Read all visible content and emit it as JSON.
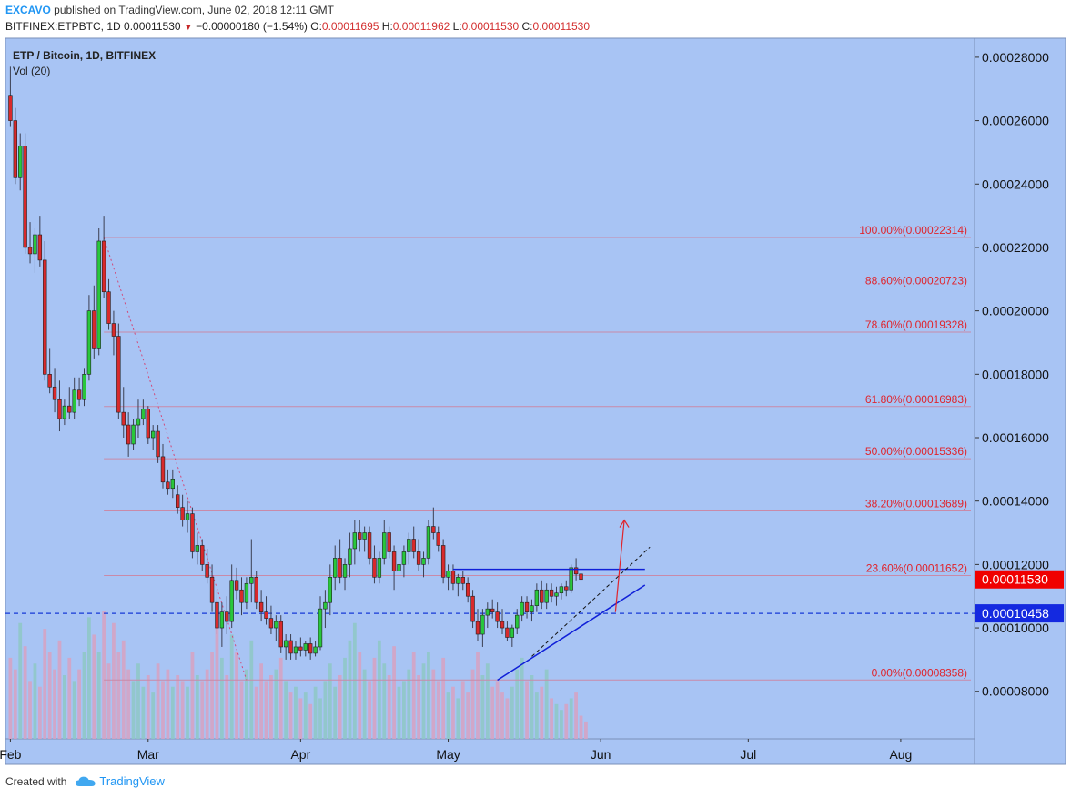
{
  "header": {
    "author": "EXCAVO",
    "published_text": "published on TradingView.com, June 02, 2018 12:11 GMT",
    "symbol": "BITFINEX:ETPBTC, 1D",
    "last": "0.00011530",
    "change": "−0.00000180 (−1.54%)",
    "o_label": "O:",
    "o": "0.00011695",
    "h_label": "H:",
    "h": "0.00011962",
    "l_label": "L:",
    "l": "0.00011530",
    "c_label": "C:",
    "c": "0.00011530"
  },
  "footer": {
    "created_with": "Created with",
    "brand": "TradingView"
  },
  "chart_data": {
    "type": "candlestick",
    "title": "ETP / Bitcoin, 1D, BITFINEX",
    "indicator": "Vol (20)",
    "ylim": [
      6.5e-05,
      0.000286
    ],
    "y_ticks": [
      "0.00008000",
      "0.00010000",
      "0.00012000",
      "0.00014000",
      "0.00016000",
      "0.00018000",
      "0.00020000",
      "0.00022000",
      "0.00024000",
      "0.00026000",
      "0.00028000"
    ],
    "x_ticks": [
      {
        "label": "Feb",
        "day": 0
      },
      {
        "label": "Mar",
        "day": 28
      },
      {
        "label": "Apr",
        "day": 59
      },
      {
        "label": "May",
        "day": 89
      },
      {
        "label": "Jun",
        "day": 120
      },
      {
        "label": "Jul",
        "day": 150
      },
      {
        "label": "Aug",
        "day": 181
      }
    ],
    "x_range_days": [
      -1,
      196
    ],
    "last_price_label": "0.00011530",
    "horizontal_line": {
      "value": 0.00010458,
      "label": "0.00010458"
    },
    "fib_levels": [
      {
        "label": "100.00%(0.00022314)",
        "value": 0.00022314
      },
      {
        "label": "88.60%(0.00020723)",
        "value": 0.00020723
      },
      {
        "label": "78.60%(0.00019328)",
        "value": 0.00019328
      },
      {
        "label": "61.80%(0.00016983)",
        "value": 0.00016983
      },
      {
        "label": "50.00%(0.00015336)",
        "value": 0.00015336
      },
      {
        "label": "38.20%(0.00013689)",
        "value": 0.00013689
      },
      {
        "label": "23.60%(0.00011652)",
        "value": 0.00011652
      },
      {
        "label": "0.00%(0.00008358)",
        "value": 8.358e-05
      }
    ],
    "fib_x_start_day": 19,
    "candles": [
      [
        0.000268,
        0.000277,
        0.000258,
        0.00026
      ],
      [
        0.00026,
        0.000264,
        0.00024,
        0.000242
      ],
      [
        0.000242,
        0.000256,
        0.000238,
        0.000252
      ],
      [
        0.000252,
        0.000256,
        0.000218,
        0.00022
      ],
      [
        0.00022,
        0.000228,
        0.000215,
        0.000218
      ],
      [
        0.000218,
        0.000226,
        0.000212,
        0.000224
      ],
      [
        0.000224,
        0.00023,
        0.000214,
        0.000216
      ],
      [
        0.000216,
        0.000222,
        0.000178,
        0.00018
      ],
      [
        0.00018,
        0.000188,
        0.000174,
        0.000176
      ],
      [
        0.000176,
        0.000182,
        0.000168,
        0.000172
      ],
      [
        0.000172,
        0.000178,
        0.000162,
        0.000166
      ],
      [
        0.000166,
        0.000172,
        0.000164,
        0.00017
      ],
      [
        0.00017,
        0.000176,
        0.000166,
        0.000168
      ],
      [
        0.000168,
        0.000179,
        0.000166,
        0.000175
      ],
      [
        0.000175,
        0.000179,
        0.00017,
        0.000172
      ],
      [
        0.000172,
        0.000182,
        0.00017,
        0.00018
      ],
      [
        0.00018,
        0.000205,
        0.000178,
        0.0002
      ],
      [
        0.0002,
        0.000208,
        0.000185,
        0.000188
      ],
      [
        0.000188,
        0.000226,
        0.000186,
        0.000222
      ],
      [
        0.000222,
        0.00023,
        0.000204,
        0.000206
      ],
      [
        0.000206,
        0.00021,
        0.000194,
        0.000196
      ],
      [
        0.000196,
        0.0002,
        0.000186,
        0.000192
      ],
      [
        0.000192,
        0.000196,
        0.000166,
        0.000168
      ],
      [
        0.000168,
        0.000176,
        0.00016,
        0.000164
      ],
      [
        0.000164,
        0.000168,
        0.000154,
        0.000158
      ],
      [
        0.000158,
        0.000166,
        0.000156,
        0.000164
      ],
      [
        0.000164,
        0.000172,
        0.00016,
        0.000166
      ],
      [
        0.000166,
        0.000172,
        0.000164,
        0.000169
      ],
      [
        0.000169,
        0.00017,
        0.000158,
        0.00016
      ],
      [
        0.00016,
        0.000164,
        0.000156,
        0.000162
      ],
      [
        0.000162,
        0.000164,
        0.000152,
        0.000154
      ],
      [
        0.000154,
        0.000158,
        0.000144,
        0.000146
      ],
      [
        0.000146,
        0.00015,
        0.000142,
        0.000144
      ],
      [
        0.000144,
        0.00015,
        0.000141,
        0.000147
      ],
      [
        0.000142,
        0.000145,
        0.000136,
        0.000138
      ],
      [
        0.000138,
        0.000142,
        0.000132,
        0.000134
      ],
      [
        0.000134,
        0.00014,
        0.00013,
        0.000136
      ],
      [
        0.000136,
        0.000138,
        0.000122,
        0.000124
      ],
      [
        0.000124,
        0.00013,
        0.00012,
        0.000126
      ],
      [
        0.000126,
        0.000128,
        0.000118,
        0.00012
      ],
      [
        0.00012,
        0.000125,
        0.000114,
        0.000116
      ],
      [
        0.000116,
        0.00012,
        0.000105,
        0.000108
      ],
      [
        0.000108,
        0.000112,
        9.8e-05,
        0.0001
      ],
      [
        0.0001,
        0.000108,
        9.4e-05,
        0.000105
      ],
      [
        0.000105,
        0.00011,
        9.8e-05,
        0.000102
      ],
      [
        0.000102,
        0.00012,
        0.0001,
        0.000115
      ],
      [
        0.000115,
        0.000119,
        0.000109,
        0.000112
      ],
      [
        0.000112,
        0.000116,
        0.000104,
        0.000108
      ],
      [
        0.000108,
        0.000116,
        0.000106,
        0.000114
      ],
      [
        0.000114,
        0.000128,
        0.000108,
        0.000116
      ],
      [
        0.000116,
        0.000118,
        0.000106,
        0.000108
      ],
      [
        0.000108,
        0.000112,
        0.000102,
        0.000105
      ],
      [
        0.000105,
        0.00011,
        0.000101,
        0.000103
      ],
      [
        0.000103,
        0.000107,
        9.8e-05,
        0.0001
      ],
      [
        0.0001,
        0.000104,
        9.6e-05,
        0.000102
      ],
      [
        0.000102,
        0.000104,
        9.2e-05,
        9.4e-05
      ],
      [
        9.4e-05,
        9.8e-05,
        9e-05,
        9.6e-05
      ],
      [
        9.6e-05,
        9.8e-05,
        9e-05,
        9.2e-05
      ],
      [
        9.2e-05,
        9.6e-05,
        9e-05,
        9.4e-05
      ],
      [
        9.4e-05,
        9.7e-05,
        9.1e-05,
        9.3e-05
      ],
      [
        9.3e-05,
        9.6e-05,
        9.1e-05,
        9.5e-05
      ],
      [
        9.5e-05,
        9.7e-05,
        9e-05,
        9.2e-05
      ],
      [
        9.2e-05,
        9.6e-05,
        9.1e-05,
        9.4e-05
      ],
      [
        9.4e-05,
        0.00011,
        9.3e-05,
        0.000106
      ],
      [
        0.000106,
        0.000112,
        0.0001,
        0.000108
      ],
      [
        0.000108,
        0.00012,
        0.000104,
        0.000116
      ],
      [
        0.000116,
        0.000126,
        0.000112,
        0.000122
      ],
      [
        0.000122,
        0.000128,
        0.000114,
        0.000116
      ],
      [
        0.000116,
        0.000122,
        0.000112,
        0.00012
      ],
      [
        0.00012,
        0.00013,
        0.000116,
        0.000125
      ],
      [
        0.000125,
        0.000134,
        0.00012,
        0.00013
      ],
      [
        0.00013,
        0.000134,
        0.000124,
        0.000128
      ],
      [
        0.000128,
        0.000132,
        0.000124,
        0.00013
      ],
      [
        0.00013,
        0.000132,
        0.00012,
        0.000122
      ],
      [
        0.000122,
        0.000126,
        0.000114,
        0.000116
      ],
      [
        0.000116,
        0.000124,
        0.000114,
        0.000122
      ],
      [
        0.000122,
        0.000134,
        0.00012,
        0.00013
      ],
      [
        0.00013,
        0.000132,
        0.000122,
        0.000124
      ],
      [
        0.000124,
        0.000126,
        0.000112,
        0.000118
      ],
      [
        0.000118,
        0.000124,
        0.000116,
        0.00012
      ],
      [
        0.00012,
        0.000126,
        0.000116,
        0.000124
      ],
      [
        0.000124,
        0.00013,
        0.00012,
        0.000128
      ],
      [
        0.000128,
        0.000132,
        0.000122,
        0.000124
      ],
      [
        0.000124,
        0.000128,
        0.000118,
        0.00012
      ],
      [
        0.00012,
        0.000124,
        0.000116,
        0.000122
      ],
      [
        0.000122,
        0.000134,
        0.00012,
        0.000132
      ],
      [
        0.000132,
        0.000138,
        0.000128,
        0.00013
      ],
      [
        0.00013,
        0.000132,
        0.000124,
        0.000126
      ],
      [
        0.000126,
        0.000128,
        0.000114,
        0.000116
      ],
      [
        0.000116,
        0.00012,
        0.000112,
        0.000118
      ],
      [
        0.000118,
        0.00012,
        0.000112,
        0.000114
      ],
      [
        0.000114,
        0.000117,
        0.00011,
        0.000116
      ],
      [
        0.000116,
        0.000118,
        0.000112,
        0.000114
      ],
      [
        0.000114,
        0.000116,
        0.000108,
        0.00011
      ],
      [
        0.00011,
        0.000112,
        0.0001,
        0.000102
      ],
      [
        0.000102,
        0.000106,
        9.6e-05,
        9.8e-05
      ],
      [
        9.8e-05,
        0.000106,
        9.4e-05,
        0.000104
      ],
      [
        0.000104,
        0.000108,
        0.0001,
        0.000106
      ],
      [
        0.000106,
        0.000109,
        0.000103,
        0.000105
      ],
      [
        0.000105,
        0.000108,
        0.0001,
        0.000102
      ],
      [
        0.000102,
        0.000106,
        9.8e-05,
        0.0001
      ],
      [
        0.0001,
        0.000102,
        9.6e-05,
        9.7e-05
      ],
      [
        9.7e-05,
        0.000101,
        9.4e-05,
        0.0001
      ],
      [
        0.0001,
        0.000106,
        9.8e-05,
        0.000104
      ],
      [
        0.000104,
        0.00011,
        0.000102,
        0.000108
      ],
      [
        0.000108,
        0.00011,
        0.000103,
        0.000105
      ],
      [
        0.000105,
        0.000109,
        0.000102,
        0.000107
      ],
      [
        0.000107,
        0.000114,
        0.000105,
        0.000112
      ],
      [
        0.000112,
        0.000115,
        0.000106,
        0.000108
      ],
      [
        0.000108,
        0.000114,
        0.000106,
        0.000112
      ],
      [
        0.000112,
        0.000114,
        0.000108,
        0.00011
      ],
      [
        0.00011,
        0.000113,
        0.000107,
        0.000111
      ],
      [
        0.000111,
        0.000114,
        0.000109,
        0.000113
      ],
      [
        0.000113,
        0.000115,
        0.00011,
        0.000112
      ],
      [
        0.000112,
        0.00012,
        0.000111,
        0.000119
      ],
      [
        0.000119,
        0.000122,
        0.000115,
        0.000117
      ],
      [
        0.000117,
        0.0001196,
        0.0001153,
        0.0001153
      ]
    ],
    "volumes": [
      28,
      24,
      40,
      32,
      20,
      26,
      18,
      38,
      30,
      24,
      34,
      22,
      28,
      20,
      24,
      30,
      42,
      36,
      30,
      44,
      26,
      40,
      30,
      34,
      24,
      20,
      26,
      18,
      22,
      16,
      26,
      20,
      24,
      18,
      22,
      20,
      18,
      30,
      22,
      20,
      24,
      30,
      44,
      28,
      22,
      36,
      30,
      20,
      24,
      34,
      18,
      26,
      20,
      22,
      24,
      28,
      20,
      16,
      18,
      14,
      16,
      12,
      18,
      14,
      20,
      26,
      18,
      22,
      28,
      34,
      40,
      30,
      24,
      20,
      28,
      34,
      26,
      22,
      32,
      18,
      20,
      24,
      30,
      22,
      26,
      30,
      24,
      20,
      28,
      16,
      18,
      14,
      20,
      16,
      24,
      30,
      22,
      26,
      18,
      20,
      16,
      14,
      18,
      24,
      28,
      20,
      22,
      16,
      18,
      24,
      14,
      12,
      10,
      12,
      14,
      16,
      8,
      6
    ]
  }
}
